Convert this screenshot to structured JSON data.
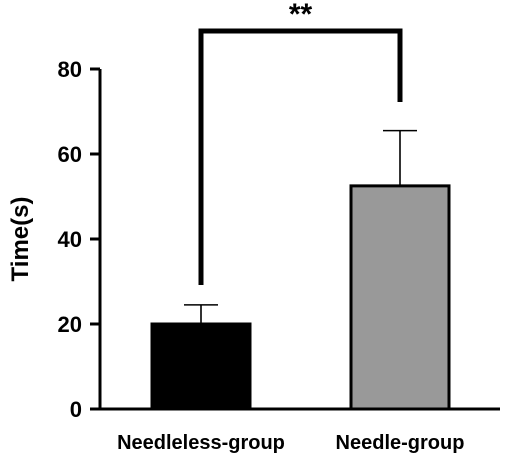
{
  "chart_data": {
    "type": "bar",
    "title": "",
    "xlabel": "",
    "ylabel": "Time(s)",
    "ylim": [
      0,
      80
    ],
    "yticks": [
      0,
      20,
      40,
      60,
      80
    ],
    "categories": [
      "Needleless-group",
      "Needle-group"
    ],
    "values": [
      20,
      52.5
    ],
    "error_upper": [
      24.5,
      65.5
    ],
    "bar_colors": [
      "#000000",
      "#999999"
    ],
    "significance": {
      "label": "**",
      "between": [
        "Needleless-group",
        "Needle-group"
      ]
    },
    "grid": false,
    "legend": "none"
  }
}
